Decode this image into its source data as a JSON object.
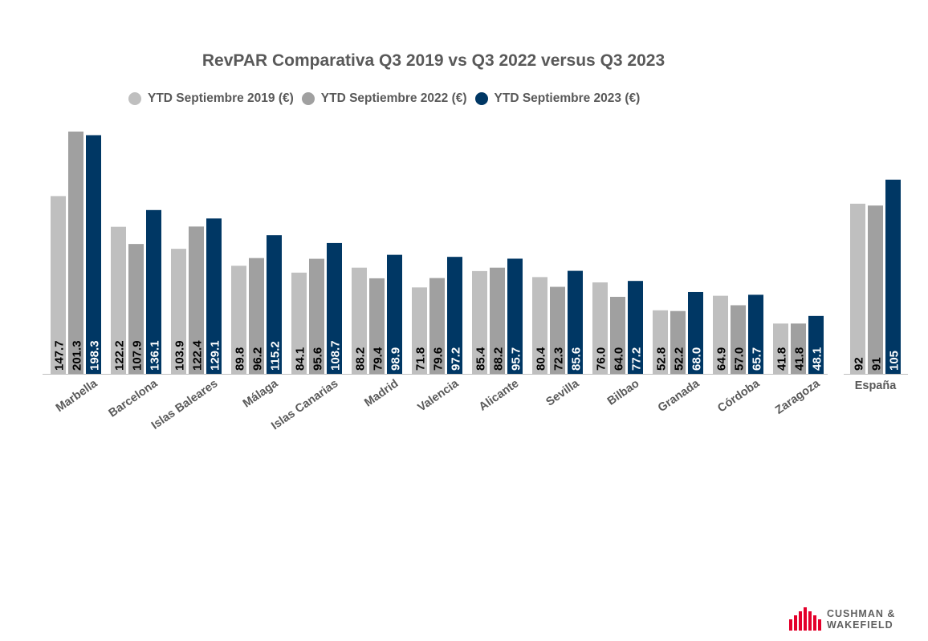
{
  "chart_data": {
    "type": "bar",
    "title": "RevPAR Comparativa Q3 2019 vs Q3 2022 versus Q3 2023",
    "legend_position": "top",
    "grid": false,
    "series": [
      {
        "name": "YTD Septiembre 2019 (€)",
        "color": "#bfbfbf",
        "label_color": "#000000"
      },
      {
        "name": "YTD Septiembre 2022 (€)",
        "color": "#a0a0a0",
        "label_color": "#000000"
      },
      {
        "name": "YTD Septiembre 2023 (€)",
        "color": "#003764",
        "label_color": "#ffffff"
      }
    ],
    "cities": {
      "categories": [
        "Marbella",
        "Barcelona",
        "Islas Baleares",
        "Málaga",
        "Islas Canarias",
        "Madrid",
        "Valencia",
        "Alicante",
        "Sevilla",
        "Bilbao",
        "Granada",
        "Córdoba",
        "Zaragoza"
      ],
      "values": [
        [
          147.7,
          201.3,
          198.3
        ],
        [
          122.2,
          107.9,
          136.1
        ],
        [
          103.9,
          122.4,
          129.1
        ],
        [
          89.8,
          96.2,
          115.2
        ],
        [
          84.1,
          95.6,
          108.7
        ],
        [
          88.2,
          79.4,
          98.9
        ],
        [
          71.8,
          79.6,
          97.2
        ],
        [
          85.4,
          88.2,
          95.7
        ],
        [
          80.4,
          72.3,
          85.6
        ],
        [
          76.0,
          64.0,
          77.2
        ],
        [
          52.8,
          52.2,
          68.0
        ],
        [
          64.9,
          57.0,
          65.7
        ],
        [
          41.8,
          41.8,
          48.1
        ]
      ],
      "labels": [
        [
          "147.7",
          "201.3",
          "198.3"
        ],
        [
          "122.2",
          "107.9",
          "136.1"
        ],
        [
          "103.9",
          "122.4",
          "129.1"
        ],
        [
          "89.8",
          "96.2",
          "115.2"
        ],
        [
          "84.1",
          "95.6",
          "108.7"
        ],
        [
          "88.2",
          "79.4",
          "98.9"
        ],
        [
          "71.8",
          "79.6",
          "97.2"
        ],
        [
          "85.4",
          "88.2",
          "95.7"
        ],
        [
          "80.4",
          "72.3",
          "85.6"
        ],
        [
          "76.0",
          "64.0",
          "77.2"
        ],
        [
          "52.8",
          "52.2",
          "68.0"
        ],
        [
          "64.9",
          "57.0",
          "65.7"
        ],
        [
          "41.8",
          "41.8",
          "48.1"
        ]
      ],
      "ylim": [
        0,
        201.3
      ]
    },
    "national": {
      "categories": [
        "España"
      ],
      "values": [
        [
          92,
          91,
          105
        ]
      ],
      "labels": [
        [
          "92",
          "91",
          "105"
        ]
      ],
      "ylim": [
        0,
        131
      ]
    }
  },
  "brand": {
    "logo_line1": "CUSHMAN &",
    "logo_line2": "WAKEFIELD",
    "logo_color": "#e4002b"
  }
}
